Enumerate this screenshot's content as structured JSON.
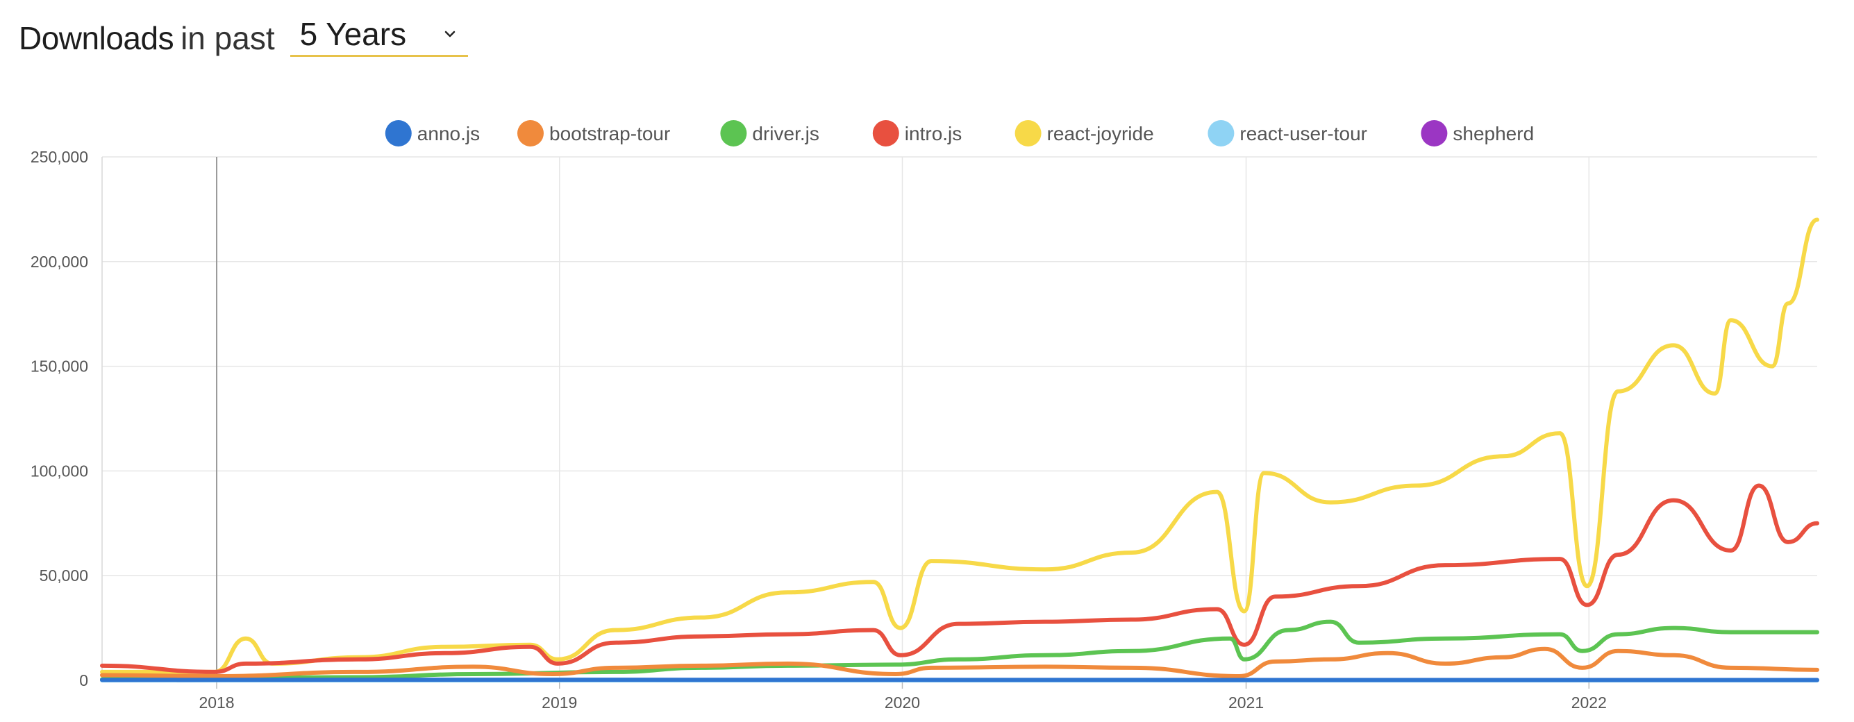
{
  "header": {
    "title_strong": "Downloads",
    "title_light": "in past",
    "period_selected": "5 Years",
    "chevron_icon": "chevron-down-icon",
    "accent_color": "#e7c24a"
  },
  "chart_data": {
    "type": "line",
    "title": "",
    "xlabel": "",
    "ylabel": "",
    "ylim": [
      0,
      250000
    ],
    "xlim": [
      "2017-09-01",
      "2022-09-01"
    ],
    "y_ticks": [
      "0",
      "50,000",
      "100,000",
      "150,000",
      "200,000",
      "250,000"
    ],
    "y_tick_values": [
      0,
      50000,
      100000,
      150000,
      200000,
      250000
    ],
    "x_ticks": [
      "2018",
      "2019",
      "2020",
      "2021",
      "2022"
    ],
    "x_tick_dates": [
      "2018-01-01",
      "2019-01-01",
      "2020-01-01",
      "2021-01-01",
      "2022-01-01"
    ],
    "grid": true,
    "legend_position": "top",
    "series": [
      {
        "name": "anno.js",
        "color": "#2f75d1",
        "points": [
          [
            "2017-09-01",
            200
          ],
          [
            "2018-06-01",
            300
          ],
          [
            "2019-06-01",
            250
          ],
          [
            "2020-06-01",
            200
          ],
          [
            "2021-06-01",
            150
          ],
          [
            "2022-09-01",
            150
          ]
        ]
      },
      {
        "name": "bootstrap-tour",
        "color": "#f08a3c",
        "points": [
          [
            "2017-09-01",
            2500
          ],
          [
            "2018-01-01",
            2000
          ],
          [
            "2018-06-01",
            4000
          ],
          [
            "2018-10-01",
            6500
          ],
          [
            "2018-12-25",
            3000
          ],
          [
            "2019-03-01",
            6000
          ],
          [
            "2019-06-01",
            7000
          ],
          [
            "2019-09-01",
            8000
          ],
          [
            "2019-12-25",
            3000
          ],
          [
            "2020-02-01",
            6000
          ],
          [
            "2020-06-01",
            6500
          ],
          [
            "2020-09-01",
            6000
          ],
          [
            "2020-12-25",
            2000
          ],
          [
            "2021-02-01",
            9000
          ],
          [
            "2021-04-01",
            10000
          ],
          [
            "2021-06-01",
            13000
          ],
          [
            "2021-08-01",
            8000
          ],
          [
            "2021-10-01",
            11000
          ],
          [
            "2021-11-15",
            15000
          ],
          [
            "2021-12-25",
            6000
          ],
          [
            "2022-02-01",
            14000
          ],
          [
            "2022-04-01",
            12000
          ],
          [
            "2022-06-01",
            6000
          ],
          [
            "2022-09-01",
            5000
          ]
        ]
      },
      {
        "name": "driver.js",
        "color": "#5cc452",
        "points": [
          [
            "2017-09-01",
            500
          ],
          [
            "2018-06-01",
            1500
          ],
          [
            "2018-10-01",
            3000
          ],
          [
            "2019-03-01",
            4000
          ],
          [
            "2019-06-01",
            6000
          ],
          [
            "2019-09-01",
            7000
          ],
          [
            "2019-12-25",
            7500
          ],
          [
            "2020-03-01",
            10000
          ],
          [
            "2020-06-01",
            12000
          ],
          [
            "2020-09-01",
            14000
          ],
          [
            "2020-12-15",
            20000
          ],
          [
            "2020-12-30",
            10000
          ],
          [
            "2021-02-15",
            24000
          ],
          [
            "2021-04-01",
            28000
          ],
          [
            "2021-05-01",
            18000
          ],
          [
            "2021-08-01",
            20000
          ],
          [
            "2021-12-01",
            22000
          ],
          [
            "2021-12-25",
            14000
          ],
          [
            "2022-02-01",
            22000
          ],
          [
            "2022-04-01",
            25000
          ],
          [
            "2022-06-01",
            23000
          ],
          [
            "2022-09-01",
            23000
          ]
        ]
      },
      {
        "name": "intro.js",
        "color": "#e8503f",
        "points": [
          [
            "2017-09-01",
            7000
          ],
          [
            "2017-12-30",
            4000
          ],
          [
            "2018-02-01",
            8000
          ],
          [
            "2018-06-01",
            10000
          ],
          [
            "2018-09-01",
            13000
          ],
          [
            "2018-12-01",
            16000
          ],
          [
            "2018-12-30",
            8000
          ],
          [
            "2019-03-01",
            18000
          ],
          [
            "2019-06-01",
            21000
          ],
          [
            "2019-09-01",
            22000
          ],
          [
            "2019-12-01",
            24000
          ],
          [
            "2019-12-30",
            12000
          ],
          [
            "2020-03-01",
            27000
          ],
          [
            "2020-06-01",
            28000
          ],
          [
            "2020-09-01",
            29000
          ],
          [
            "2020-12-01",
            34000
          ],
          [
            "2020-12-30",
            17000
          ],
          [
            "2021-02-01",
            40000
          ],
          [
            "2021-05-01",
            45000
          ],
          [
            "2021-08-01",
            55000
          ],
          [
            "2021-12-01",
            58000
          ],
          [
            "2021-12-30",
            36000
          ],
          [
            "2022-02-01",
            60000
          ],
          [
            "2022-04-01",
            86000
          ],
          [
            "2022-06-01",
            62000
          ],
          [
            "2022-07-01",
            93000
          ],
          [
            "2022-08-01",
            66000
          ],
          [
            "2022-09-01",
            75000
          ]
        ]
      },
      {
        "name": "react-joyride",
        "color": "#f7d948",
        "points": [
          [
            "2017-09-01",
            4000
          ],
          [
            "2017-12-30",
            4000
          ],
          [
            "2018-02-01",
            20000
          ],
          [
            "2018-03-01",
            8000
          ],
          [
            "2018-06-01",
            11000
          ],
          [
            "2018-09-01",
            16000
          ],
          [
            "2018-12-01",
            17000
          ],
          [
            "2018-12-30",
            10000
          ],
          [
            "2019-03-01",
            24000
          ],
          [
            "2019-06-01",
            30000
          ],
          [
            "2019-09-01",
            42000
          ],
          [
            "2019-12-01",
            47000
          ],
          [
            "2019-12-30",
            25000
          ],
          [
            "2020-02-01",
            57000
          ],
          [
            "2020-06-01",
            53000
          ],
          [
            "2020-09-01",
            61000
          ],
          [
            "2020-12-01",
            90000
          ],
          [
            "2020-12-30",
            33000
          ],
          [
            "2021-01-20",
            99000
          ],
          [
            "2021-04-01",
            85000
          ],
          [
            "2021-07-01",
            93000
          ],
          [
            "2021-10-01",
            107000
          ],
          [
            "2021-12-01",
            118000
          ],
          [
            "2021-12-30",
            45000
          ],
          [
            "2022-02-01",
            138000
          ],
          [
            "2022-04-01",
            160000
          ],
          [
            "2022-05-15",
            137000
          ],
          [
            "2022-06-01",
            172000
          ],
          [
            "2022-07-15",
            150000
          ],
          [
            "2022-08-01",
            180000
          ],
          [
            "2022-09-01",
            220000
          ]
        ]
      },
      {
        "name": "react-user-tour",
        "color": "#8fd3f4",
        "points": [
          [
            "2017-09-01",
            0
          ],
          [
            "2022-09-01",
            0
          ]
        ]
      },
      {
        "name": "shepherd",
        "color": "#9b36c3",
        "points": []
      }
    ]
  }
}
